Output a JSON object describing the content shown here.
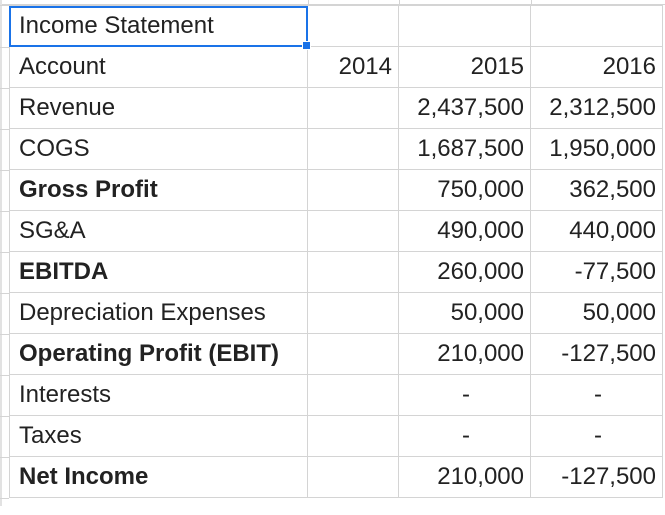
{
  "sheet": {
    "rows": [
      {
        "account": "Income Statement",
        "y2014": "",
        "y2015": "",
        "y2016": "",
        "bold": false
      },
      {
        "account": "Account",
        "y2014": "2014",
        "y2015": "2015",
        "y2016": "2016",
        "bold": false
      },
      {
        "account": "Revenue",
        "y2014": "",
        "y2015": "2,437,500",
        "y2016": "2,312,500",
        "bold": false
      },
      {
        "account": "COGS",
        "y2014": "",
        "y2015": "1,687,500",
        "y2016": "1,950,000",
        "bold": false
      },
      {
        "account": "Gross Profit",
        "y2014": "",
        "y2015": "750,000",
        "y2016": "362,500",
        "bold": true
      },
      {
        "account": "SG&A",
        "y2014": "",
        "y2015": "490,000",
        "y2016": "440,000",
        "bold": false
      },
      {
        "account": "EBITDA",
        "y2014": "",
        "y2015": "260,000",
        "y2016": "-77,500",
        "bold": true
      },
      {
        "account": "Depreciation Expenses",
        "y2014": "",
        "y2015": "50,000",
        "y2016": "50,000",
        "bold": false
      },
      {
        "account": "Operating Profit (EBIT)",
        "y2014": "",
        "y2015": "210,000",
        "y2016": "-127,500",
        "bold": true
      },
      {
        "account": "Interests",
        "y2014": "",
        "y2015": "-",
        "y2016": "-",
        "bold": false
      },
      {
        "account": "Taxes",
        "y2014": "",
        "y2015": "-",
        "y2016": "-",
        "bold": false
      },
      {
        "account": "Net Income",
        "y2014": "",
        "y2015": "210,000",
        "y2016": "-127,500",
        "bold": true
      }
    ]
  },
  "colors": {
    "grid": "#d4d4d4",
    "selection": "#1a73e8",
    "text": "#222222"
  }
}
